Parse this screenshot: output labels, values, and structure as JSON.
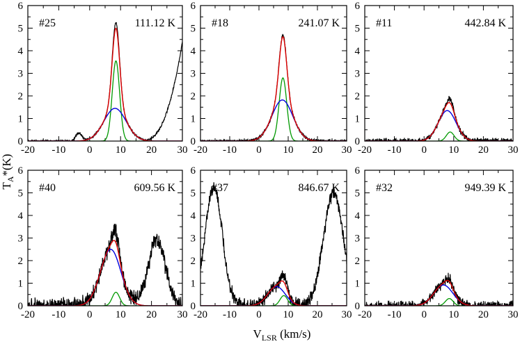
{
  "figure": {
    "ylabel_main": "T",
    "ylabel_sub": "A",
    "ylabel_rest": "*(K)",
    "xlabel_main": "V",
    "xlabel_sub": "LSR",
    "xlabel_rest": " (km/s)"
  },
  "colors": {
    "observed": "#000000",
    "total_fit": "#dd0000",
    "broad_component": "#0000dd",
    "narrow_component": "#009900"
  },
  "chart_data": [
    {
      "type": "line",
      "panel_id": "#25",
      "temperature_label": "111.12 K",
      "xlim": [
        -20,
        30
      ],
      "ylim": [
        0,
        6
      ],
      "xticks": [
        "-20",
        "-10",
        "0",
        "10",
        "20",
        "30"
      ],
      "yticks": [
        "0",
        "1",
        "2",
        "3",
        "4",
        "5",
        "6"
      ],
      "narrow": {
        "amp": 3.55,
        "center": 8.5,
        "sigma": 1.2
      },
      "broad": {
        "amp": 1.45,
        "center": 8.2,
        "sigma": 3.6
      },
      "extra_peaks": [
        {
          "amp": 0.35,
          "center": -3.5,
          "sigma": 1.0
        }
      ],
      "rise": {
        "amp": 4.4,
        "start": 17,
        "power": 2.5
      },
      "obs_peak": 5.25,
      "noise": 0.02
    },
    {
      "type": "line",
      "panel_id": "#18",
      "temperature_label": "241.07 K",
      "xlim": [
        -20,
        30
      ],
      "ylim": [
        0,
        6
      ],
      "xticks": [
        "-20",
        "-10",
        "0",
        "10",
        "20",
        "30"
      ],
      "yticks": [
        "0",
        "1",
        "2",
        "3",
        "4",
        "5",
        "6"
      ],
      "narrow": {
        "amp": 2.8,
        "center": 8.2,
        "sigma": 1.3
      },
      "broad": {
        "amp": 1.82,
        "center": 8.0,
        "sigma": 3.6
      },
      "extra_peaks": [],
      "rise": null,
      "obs_peak": 4.7,
      "noise": 0.03
    },
    {
      "type": "line",
      "panel_id": "#11",
      "temperature_label": "442.84 K",
      "xlim": [
        -20,
        30
      ],
      "ylim": [
        0,
        6
      ],
      "xticks": [
        "-20",
        "-10",
        "0",
        "10",
        "20",
        "30"
      ],
      "yticks": [
        "0",
        "1",
        "2",
        "3",
        "4",
        "5",
        "6"
      ],
      "narrow": {
        "amp": 0.4,
        "center": 8.8,
        "sigma": 1.3
      },
      "broad": {
        "amp": 1.35,
        "center": 7.8,
        "sigma": 3.0
      },
      "extra_peaks": [],
      "rise": null,
      "obs_peak": 1.9,
      "noise": 0.05
    },
    {
      "type": "line",
      "panel_id": "#40",
      "temperature_label": "609.56 K",
      "xlim": [
        -20,
        30
      ],
      "ylim": [
        0,
        6
      ],
      "xticks": [
        "-20",
        "-10",
        "0",
        "10",
        "20",
        "30"
      ],
      "yticks": [
        "0",
        "1",
        "2",
        "3",
        "4",
        "5",
        "6"
      ],
      "narrow": {
        "amp": 0.6,
        "center": 8.5,
        "sigma": 1.2
      },
      "broad": {
        "amp": 2.5,
        "center": 6.8,
        "sigma": 3.3
      },
      "extra_peaks": [
        {
          "amp": 2.9,
          "center": 21.7,
          "sigma": 2.8
        }
      ],
      "rise": null,
      "obs_peak": 3.4,
      "noise": 0.15
    },
    {
      "type": "line",
      "panel_id": "#37",
      "temperature_label": "846.67 K",
      "xlim": [
        -20,
        30
      ],
      "ylim": [
        0,
        6
      ],
      "xticks": [
        "-20",
        "-10",
        "0",
        "10",
        "20",
        "30"
      ],
      "yticks": [
        "0",
        "1",
        "2",
        "3",
        "4",
        "5",
        "6"
      ],
      "narrow": {
        "amp": 0.45,
        "center": 8.5,
        "sigma": 1.3
      },
      "broad": {
        "amp": 0.85,
        "center": 6.0,
        "sigma": 3.0
      },
      "extra_peaks": [
        {
          "amp": 5.2,
          "center": -15.5,
          "sigma": 3.0
        },
        {
          "amp": 5.0,
          "center": 25.5,
          "sigma": 3.4
        }
      ],
      "rise": null,
      "obs_peak": 1.4,
      "noise": 0.12
    },
    {
      "type": "line",
      "panel_id": "#32",
      "temperature_label": "949.39 K",
      "xlim": [
        -20,
        30
      ],
      "ylim": [
        0,
        6
      ],
      "xticks": [
        "-20",
        "-10",
        "0",
        "10",
        "20",
        "30"
      ],
      "yticks": [
        "0",
        "1",
        "2",
        "3",
        "4",
        "5",
        "6"
      ],
      "narrow": {
        "amp": 0.32,
        "center": 8.5,
        "sigma": 1.3
      },
      "broad": {
        "amp": 0.92,
        "center": 6.5,
        "sigma": 3.2
      },
      "extra_peaks": [],
      "rise": null,
      "obs_peak": 1.25,
      "noise": 0.09
    }
  ]
}
